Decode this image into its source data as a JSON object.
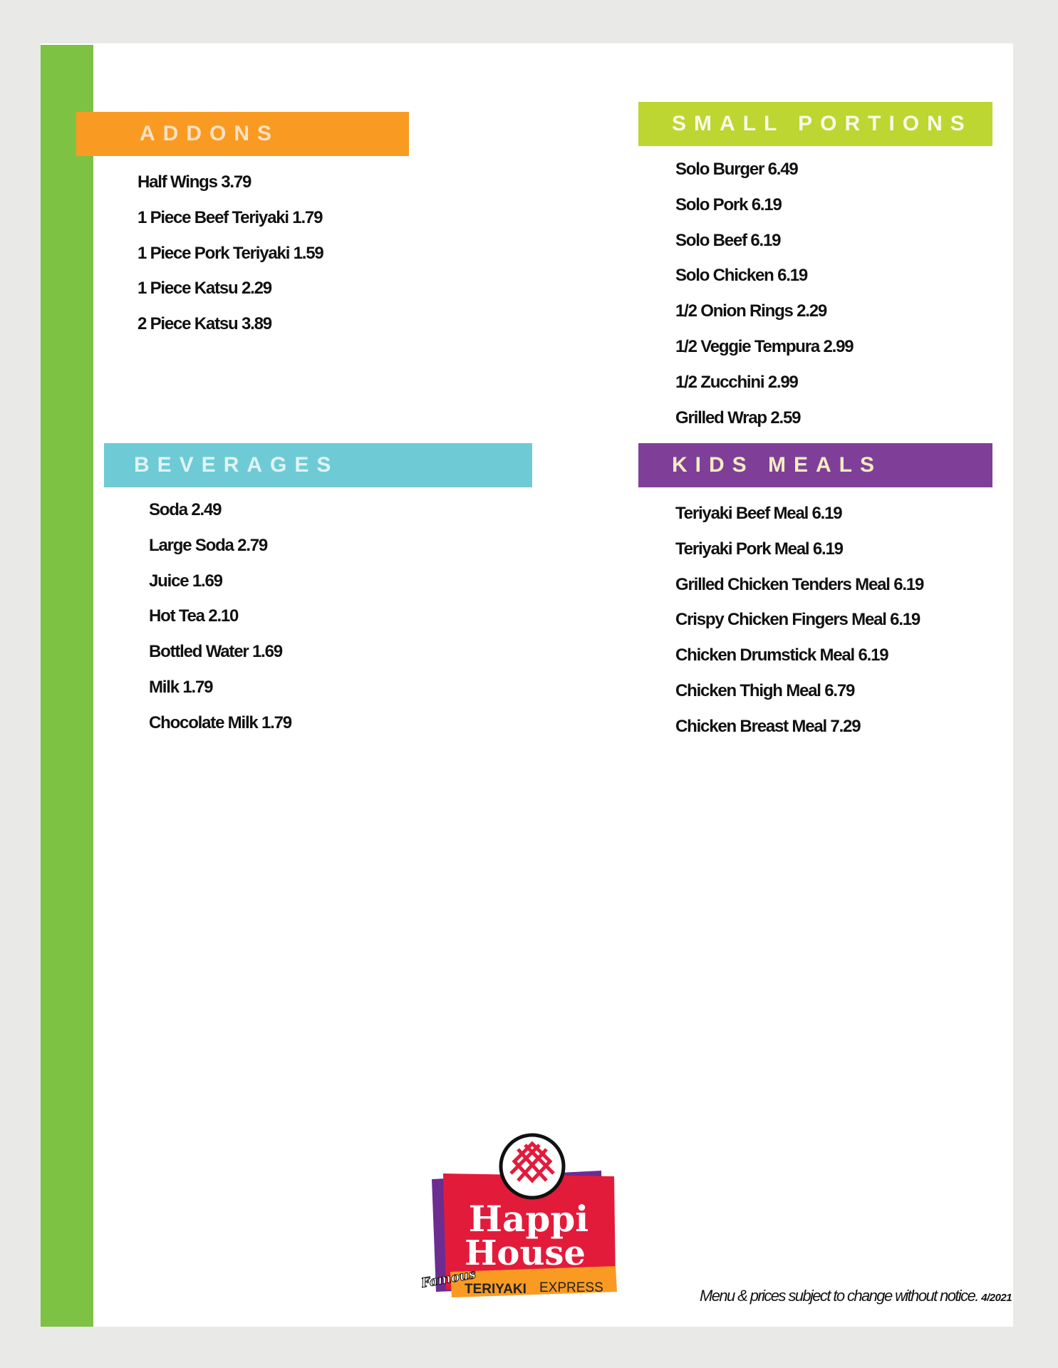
{
  "colors": {
    "background": "#e9e9e7",
    "sidebar": "#7dc242",
    "addons": "#f99b22",
    "small_portions": "#bdd632",
    "beverages": "#6ecbd5",
    "kids_meals": "#7f3f98"
  },
  "addons": {
    "title": "ADDONS",
    "items": [
      "Half Wings 3.79",
      "1 Piece Beef Teriyaki 1.79",
      "1 Piece Pork Teriyaki 1.59",
      "1 Piece Katsu 2.29",
      "2 Piece Katsu 3.89"
    ]
  },
  "small_portions": {
    "title": "SMALL PORTIONS",
    "items": [
      "Solo Burger 6.49",
      "Solo Pork 6.19",
      "Solo Beef 6.19",
      "Solo Chicken 6.19",
      "1/2 Onion Rings 2.29",
      "1/2 Veggie Tempura  2.99",
      "1/2 Zucchini 2.99",
      "Grilled Wrap 2.59"
    ]
  },
  "beverages": {
    "title": "BEVERAGES",
    "items": [
      "Soda 2.49",
      "Large Soda 2.79",
      "Juice 1.69",
      "Hot Tea 2.10",
      "Bottled Water 1.69",
      "Milk 1.79",
      "Chocolate Milk 1.79"
    ]
  },
  "kids_meals": {
    "title": "KIDS MEALS",
    "items": [
      "Teriyaki Beef Meal  6.19",
      "Teriyaki Pork Meal  6.19",
      "Grilled Chicken Tenders Meal  6.19",
      "Crispy Chicken Fingers Meal  6.19",
      "Chicken Drumstick Meal  6.19",
      "Chicken Thigh Meal  6.79",
      "Chicken Breast Meal  7.29"
    ]
  },
  "logo": {
    "line1": "Happi",
    "line2": "House",
    "script": "Famous",
    "tag_bold": "TERIYAKI",
    "tag_light": "EXPRESS"
  },
  "footer": {
    "notice": "Menu & prices subject to change without notice.",
    "date": "4/2021"
  }
}
